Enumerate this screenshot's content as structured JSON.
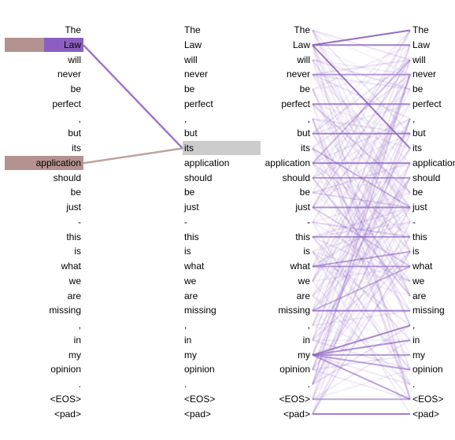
{
  "colors": {
    "purple": "#8b5fbf",
    "brown": "#b4928f",
    "highlight": "#cccccc"
  },
  "panel_a": {
    "left_tokens": [
      "The",
      "Law",
      "will",
      "never",
      "be",
      "perfect",
      ",",
      "but",
      "its",
      "application",
      "should",
      "be",
      "just",
      "-",
      "this",
      "is",
      "what",
      "we",
      "are",
      "missing",
      ",",
      "in",
      "my",
      "opinion",
      ".",
      "<EOS>",
      "<pad>"
    ],
    "right_tokens": [
      "The",
      "Law",
      "will",
      "never",
      "be",
      "perfect",
      ",",
      "but",
      "its",
      "application",
      "should",
      "be",
      "just",
      "-",
      "this",
      "is",
      "what",
      "we",
      "are",
      "missing",
      ",",
      "in",
      "my",
      "opinion",
      ".",
      "<EOS>",
      "<pad>"
    ],
    "selected_index": 8,
    "edges": [
      {
        "from": 1,
        "to": 8,
        "color": "purple",
        "weight": 0.85
      },
      {
        "from": 9,
        "to": 8,
        "color": "brown",
        "weight": 0.85
      }
    ],
    "bars": [
      {
        "index": 1,
        "purple": 0.5,
        "brown": 0.5
      },
      {
        "index": 9,
        "brown": 1.0
      }
    ]
  },
  "panel_b": {
    "left_tokens": [
      "The",
      "Law",
      "will",
      "never",
      "be",
      "perfect",
      ",",
      "but",
      "its",
      "application",
      "should",
      "be",
      "just",
      "-",
      "this",
      "is",
      "what",
      "we",
      "are",
      "missing",
      ",",
      "in",
      "my",
      "opinion",
      ".",
      "<EOS>",
      "<pad>"
    ],
    "right_tokens": [
      "The",
      "Law",
      "will",
      "never",
      "be",
      "perfect",
      ",",
      "but",
      "its",
      "application",
      "should",
      "be",
      "just",
      "-",
      "this",
      "is",
      "what",
      "we",
      "are",
      "missing",
      ",",
      "in",
      "my",
      "opinion",
      ".",
      "<EOS>",
      "<pad>"
    ],
    "strong_edges": [
      [
        1,
        0,
        0.9
      ],
      [
        1,
        1,
        0.8
      ],
      [
        1,
        8,
        0.85
      ],
      [
        3,
        3,
        0.6
      ],
      [
        5,
        5,
        0.75
      ],
      [
        7,
        7,
        0.7
      ],
      [
        9,
        9,
        0.8
      ],
      [
        10,
        10,
        0.6
      ],
      [
        12,
        12,
        0.7
      ],
      [
        14,
        14,
        0.55
      ],
      [
        16,
        16,
        0.6
      ],
      [
        16,
        15,
        0.55
      ],
      [
        19,
        19,
        0.75
      ],
      [
        19,
        16,
        0.45
      ],
      [
        22,
        20,
        0.75
      ],
      [
        22,
        21,
        0.6
      ],
      [
        22,
        22,
        0.6
      ],
      [
        22,
        23,
        0.55
      ],
      [
        22,
        25,
        0.6
      ],
      [
        26,
        26,
        0.8
      ],
      [
        25,
        25,
        0.55
      ],
      [
        9,
        2,
        0.35
      ],
      [
        8,
        12,
        0.3
      ],
      [
        10,
        18,
        0.3
      ],
      [
        24,
        3,
        0.3
      ],
      [
        23,
        6,
        0.25
      ],
      [
        12,
        16,
        0.3
      ]
    ]
  }
}
